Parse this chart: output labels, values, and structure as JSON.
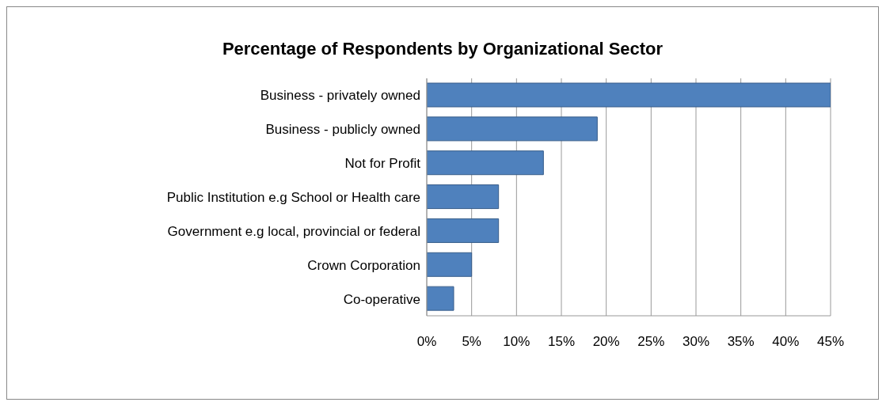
{
  "chart_data": {
    "type": "bar",
    "orientation": "horizontal",
    "title": "Percentage of Respondents by Organizational Sector",
    "categories": [
      "Business - privately owned",
      "Business - publicly owned",
      "Not for Profit",
      "Public Institution e.g School or Health care",
      "Government e.g local, provincial or federal",
      "Crown Corporation",
      "Co-operative"
    ],
    "values": [
      45,
      19,
      13,
      8,
      8,
      5,
      3
    ],
    "color": "#4f81bd",
    "xlim": [
      0,
      45
    ],
    "xticks": [
      {
        "value": 0,
        "label": "0%"
      },
      {
        "value": 5,
        "label": "5%"
      },
      {
        "value": 10,
        "label": "10%"
      },
      {
        "value": 15,
        "label": "15%"
      },
      {
        "value": 20,
        "label": "20%"
      },
      {
        "value": 25,
        "label": "25%"
      },
      {
        "value": 30,
        "label": "30%"
      },
      {
        "value": 35,
        "label": "35%"
      },
      {
        "value": 40,
        "label": "40%"
      },
      {
        "value": 45,
        "label": "45%"
      }
    ],
    "grid": "x"
  }
}
